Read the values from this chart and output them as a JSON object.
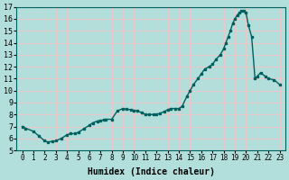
{
  "xlabel": "Humidex (Indice chaleur)",
  "line_color": "#006060",
  "marker_color": "#006060",
  "bg_color": "#b2dfdb",
  "grid_color": "#e8c8c8",
  "ylim": [
    5,
    17
  ],
  "xlim": [
    -0.5,
    23.5
  ],
  "yticks": [
    5,
    6,
    7,
    8,
    9,
    10,
    11,
    12,
    13,
    14,
    15,
    16,
    17
  ],
  "xticks": [
    0,
    1,
    2,
    3,
    4,
    5,
    6,
    7,
    8,
    9,
    10,
    11,
    12,
    13,
    14,
    15,
    16,
    17,
    18,
    19,
    20,
    21,
    22,
    23
  ],
  "x_pts": [
    0,
    0.3,
    1,
    1.5,
    2,
    2.3,
    2.7,
    3,
    3.5,
    4,
    4.3,
    4.7,
    5,
    5.5,
    6,
    6.3,
    6.7,
    7,
    7.3,
    7.5,
    8,
    8.5,
    9,
    9.3,
    9.7,
    10,
    10.3,
    10.7,
    11,
    11.3,
    11.7,
    12,
    12.3,
    12.7,
    13,
    13.3,
    13.7,
    14,
    14.3,
    14.7,
    15,
    15.3,
    15.7,
    16,
    16.3,
    16.7,
    17,
    17.3,
    17.7,
    18,
    18.2,
    18.4,
    18.6,
    18.8,
    19,
    19.2,
    19.4,
    19.6,
    19.8,
    20,
    20.2,
    20.5,
    20.8,
    21,
    21.3,
    21.7,
    22,
    22.5,
    23
  ],
  "y_pts": [
    7.0,
    6.85,
    6.6,
    6.2,
    5.8,
    5.7,
    5.75,
    5.8,
    6.0,
    6.3,
    6.4,
    6.4,
    6.5,
    6.8,
    7.1,
    7.3,
    7.45,
    7.5,
    7.55,
    7.6,
    7.6,
    8.3,
    8.5,
    8.45,
    8.4,
    8.35,
    8.3,
    8.15,
    8.0,
    8.0,
    8.0,
    8.0,
    8.1,
    8.25,
    8.4,
    8.5,
    8.5,
    8.5,
    8.7,
    9.5,
    10.0,
    10.5,
    11.0,
    11.4,
    11.8,
    12.0,
    12.2,
    12.6,
    13.0,
    13.5,
    14.0,
    14.5,
    15.0,
    15.6,
    16.0,
    16.3,
    16.5,
    16.65,
    16.7,
    16.5,
    15.5,
    14.5,
    11.0,
    11.2,
    11.5,
    11.2,
    11.0,
    10.9,
    10.5
  ]
}
